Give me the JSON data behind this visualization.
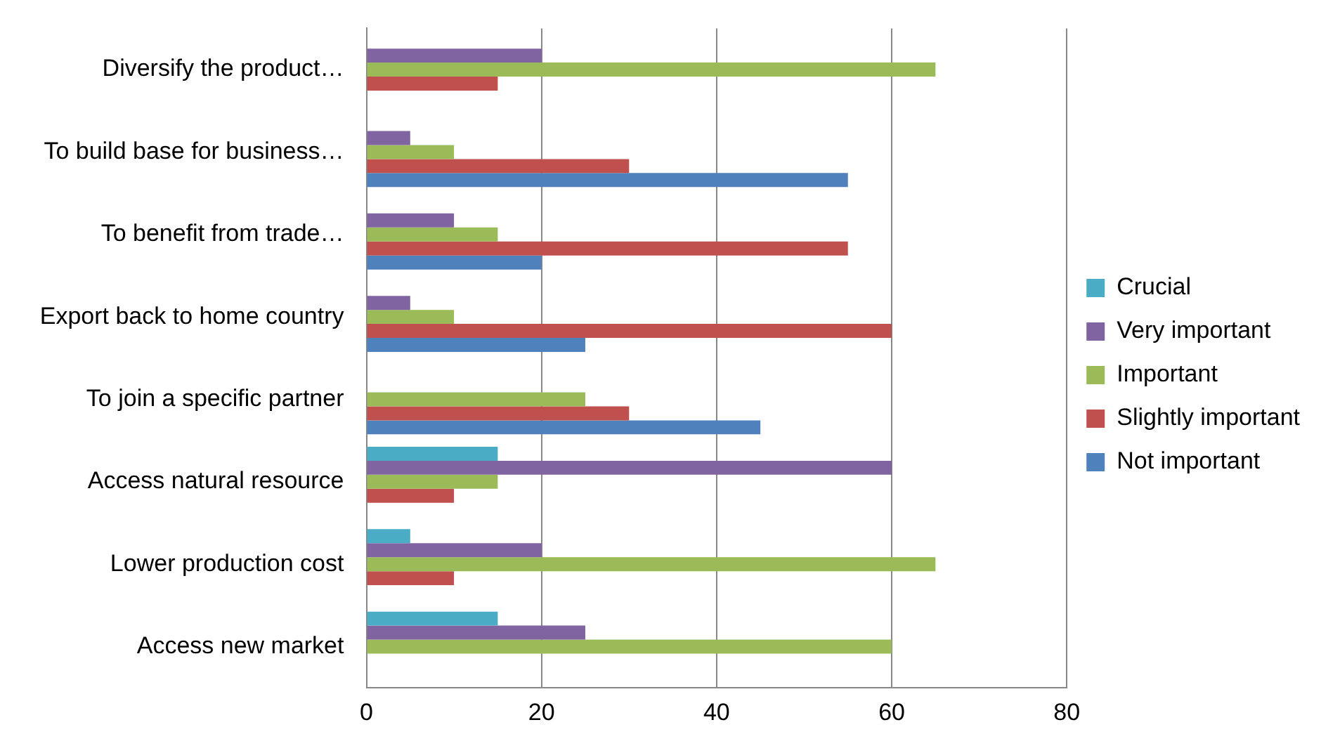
{
  "chart_data": {
    "type": "bar",
    "orientation": "horizontal",
    "categories": [
      "Diversify the product…",
      "To build base for business…",
      "To benefit from trade…",
      "Export back to home country",
      "To join a specific partner",
      "Access natural resource",
      "Lower production cost",
      "Access new market"
    ],
    "series": [
      {
        "name": "Crucial",
        "color": "#4bacc6",
        "values": [
          0,
          0,
          0,
          0,
          0,
          15,
          5,
          15
        ]
      },
      {
        "name": "Very important",
        "color": "#8064a2",
        "values": [
          20,
          5,
          10,
          5,
          0,
          60,
          20,
          25
        ]
      },
      {
        "name": "Important",
        "color": "#9bbb59",
        "values": [
          65,
          10,
          15,
          10,
          25,
          15,
          65,
          60
        ]
      },
      {
        "name": "Slightly important",
        "color": "#c0504d",
        "values": [
          15,
          30,
          55,
          60,
          30,
          10,
          10,
          0
        ]
      },
      {
        "name": "Not important",
        "color": "#4f81bd",
        "values": [
          0,
          55,
          20,
          25,
          45,
          0,
          0,
          0
        ]
      }
    ],
    "xlim": [
      0,
      80
    ],
    "xticks": [
      0,
      20,
      40,
      60,
      80
    ],
    "grid": "x",
    "legend": "right"
  }
}
